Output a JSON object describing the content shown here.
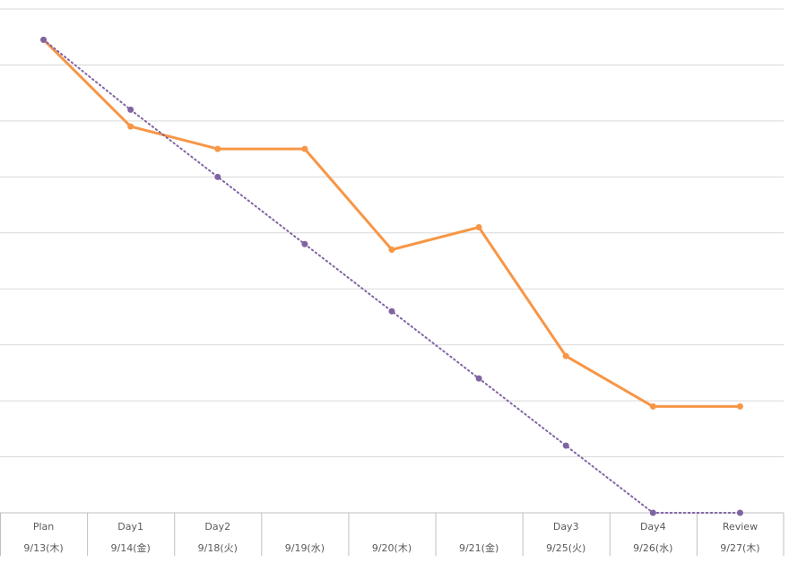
{
  "chart_data": {
    "type": "line",
    "title": "",
    "xlabel": "",
    "ylabel": "",
    "categories": [
      {
        "phase": "Plan",
        "date": "9/13(木)"
      },
      {
        "phase": "Day1",
        "date": "9/14(金)"
      },
      {
        "phase": "Day2",
        "date": "9/18(火)"
      },
      {
        "phase": "",
        "date": "9/19(水)"
      },
      {
        "phase": "",
        "date": "9/20(木)"
      },
      {
        "phase": "",
        "date": "9/21(金)"
      },
      {
        "phase": "Day3",
        "date": "9/25(火)"
      },
      {
        "phase": "Day4",
        "date": "9/26(水)"
      },
      {
        "phase": "Review",
        "date": "9/27(木)"
      }
    ],
    "ylim": [
      0,
      9
    ],
    "grid": true,
    "legend": "none",
    "series": [
      {
        "values": [
          8.45,
          6.9,
          6.5,
          6.5,
          4.7,
          5.1,
          2.8,
          1.9,
          1.9
        ],
        "color": "#f79646",
        "style": "solid"
      },
      {
        "values": [
          8.45,
          7.2,
          6.0,
          4.8,
          3.6,
          2.4,
          1.2,
          0.0,
          0.0
        ],
        "color": "#8064a2",
        "style": "dotted"
      }
    ]
  }
}
